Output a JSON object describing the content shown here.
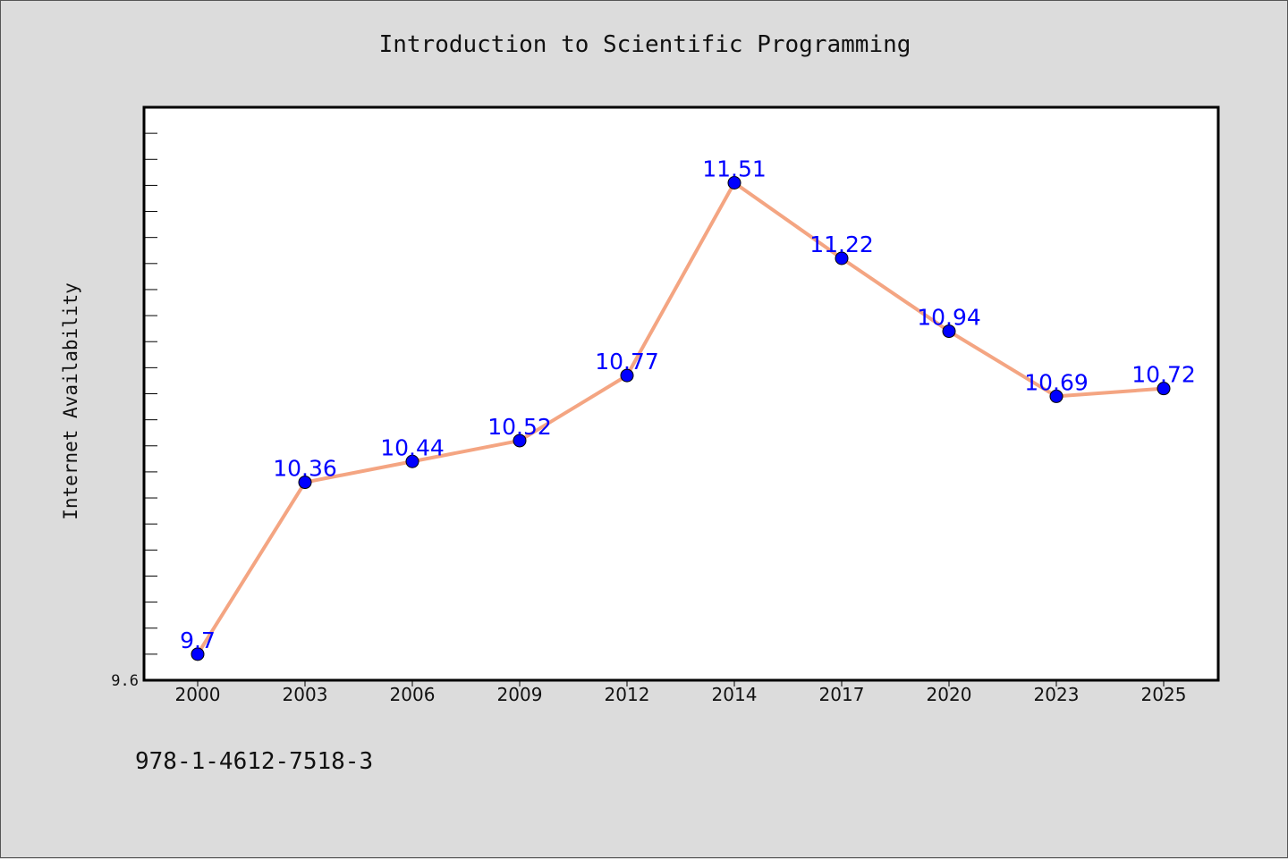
{
  "figure": {
    "background": "#dcdcdc",
    "plot_background": "#ffffff",
    "isbn": "978-1-4612-7518-3"
  },
  "chart_data": {
    "type": "line",
    "title": "Introduction to Scientific Programming",
    "xlabel": "",
    "ylabel": "Internet Availability",
    "categories": [
      "2000",
      "2003",
      "2006",
      "2009",
      "2012",
      "2014",
      "2017",
      "2020",
      "2023",
      "2025"
    ],
    "series": [
      {
        "values": [
          9.7,
          10.36,
          10.44,
          10.52,
          10.77,
          11.51,
          11.22,
          10.94,
          10.69,
          10.72
        ],
        "data_labels": [
          "9.7",
          "10.36",
          "10.44",
          "10.52",
          "10.77",
          "11.51",
          "11.22",
          "10.94",
          "10.69",
          "10.72"
        ],
        "line_color": "#f4a582",
        "marker_color": "#0000ff"
      }
    ],
    "ylim": [
      9.6,
      11.8
    ],
    "y_tick_labels": [
      "9.6"
    ],
    "grid": false,
    "legend": "none"
  }
}
